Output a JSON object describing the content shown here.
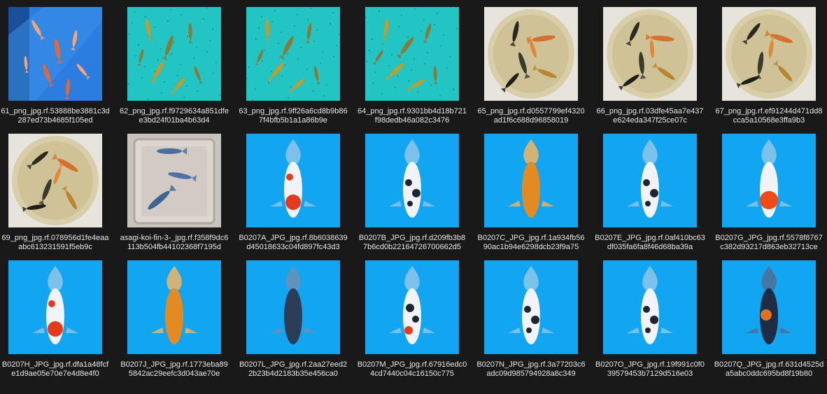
{
  "colors": {
    "background": "#191919",
    "label_text": "#e6e6e6",
    "pool_teal": "#22c4c4",
    "studio_blue": "#12a6f2",
    "bowl_cream": "#d9ceaa",
    "tank_blue": "#2b7de0"
  },
  "files": [
    {
      "filename": "61_png_jpg.rf.53888be3881c3d287ed73b4685f105ed",
      "thumb": "tank",
      "icon": "fish-tank-thumbnail"
    },
    {
      "filename": "62_png_jpg.rf.f9729634a851dfee3bd24f01ba4b63d4",
      "thumb": "pool",
      "icon": "fish-pool-thumbnail"
    },
    {
      "filename": "63_png_jpg.rf.9ff26a6cd8b9b867f4bfb5b1a1a86b9e",
      "thumb": "pool",
      "icon": "fish-pool-thumbnail"
    },
    {
      "filename": "64_png_jpg.rf.9301bb4d18b721f98dedb46a082c3476",
      "thumb": "pool",
      "icon": "fish-pool-thumbnail"
    },
    {
      "filename": "65_png_jpg.rf.d0557799ef4320ad1f6c688d96858019",
      "thumb": "bowl",
      "icon": "fish-bowl-thumbnail"
    },
    {
      "filename": "66_png_jpg.rf.03dfe45aa7e437e624eda347f25ce07c",
      "thumb": "bowl",
      "icon": "fish-bowl-thumbnail"
    },
    {
      "filename": "67_png_jpg.rf.ef91244d471dd8cca5a10568e3ffa9b3",
      "thumb": "bowl",
      "icon": "fish-bowl-thumbnail"
    },
    {
      "filename": "69_png_jpg.rf.078956d1fe4eaaabc613231591f5eb9c",
      "thumb": "bowl",
      "icon": "fish-bowl-thumbnail"
    },
    {
      "filename": "asagi-koi-fin-3-_jpg.rf.f358f9dc6113b504fb44102368f7195d",
      "thumb": "tub",
      "icon": "koi-tub-thumbnail"
    },
    {
      "filename": "B0207A_JPG_jpg.rf.8b6038639d45018633c04fd897fc43d3",
      "thumb": "koi",
      "koi": "white-red",
      "icon": "koi-thumbnail"
    },
    {
      "filename": "B0207B_JPG_jpg.rf.d209fb3b87b6cd0b22164726700662d5",
      "thumb": "koi",
      "koi": "white-black",
      "icon": "koi-thumbnail"
    },
    {
      "filename": "B0207C_JPG_jpg.rf.1a934fb5690ac1b94e6298dcb23f9a75",
      "thumb": "koi",
      "koi": "orange",
      "icon": "koi-thumbnail"
    },
    {
      "filename": "B0207E_JPG_jpg.rf.0af410bc63df035fa6fa8f46d68ba39a",
      "thumb": "koi",
      "koi": "white-black",
      "icon": "koi-thumbnail"
    },
    {
      "filename": "B0207G_JPG_jpg.rf.5578f8767c382d93217d863eb32713ce",
      "thumb": "koi",
      "koi": "red-tail",
      "icon": "koi-thumbnail"
    },
    {
      "filename": "B0207H_JPG_jpg.rf.dfa1a48fcfe1d9ae05e70e7e4d8e4f0",
      "thumb": "koi",
      "koi": "white-red",
      "icon": "koi-thumbnail"
    },
    {
      "filename": "B0207J_JPG_jpg.rf.1773eba895842ac29eefc3d043ae70e",
      "thumb": "koi",
      "koi": "orange",
      "icon": "koi-thumbnail"
    },
    {
      "filename": "B0207L_JPG_jpg.rf.2aa27eed22b23b4d2183b35e456ca0",
      "thumb": "koi",
      "koi": "dark",
      "icon": "koi-thumbnail"
    },
    {
      "filename": "B0207M_JPG_jpg.rf.67916edc04cd7440c04c16150c775",
      "thumb": "koi",
      "koi": "white-black-red",
      "icon": "koi-thumbnail"
    },
    {
      "filename": "B0207N_JPG_jpg.rf.3a77203c6adc09d985794928a8c349",
      "thumb": "koi",
      "koi": "white-black",
      "icon": "koi-thumbnail"
    },
    {
      "filename": "B0207O_JPG_jpg.rf.19f991c0f039579453b7129d516e03",
      "thumb": "koi",
      "koi": "white-black",
      "icon": "koi-thumbnail"
    },
    {
      "filename": "B0207Q_JPG_jpg.rf.631d4525da5abc0ddc695bd8f19b80",
      "thumb": "koi",
      "koi": "dark-orange",
      "icon": "koi-thumbnail"
    }
  ]
}
